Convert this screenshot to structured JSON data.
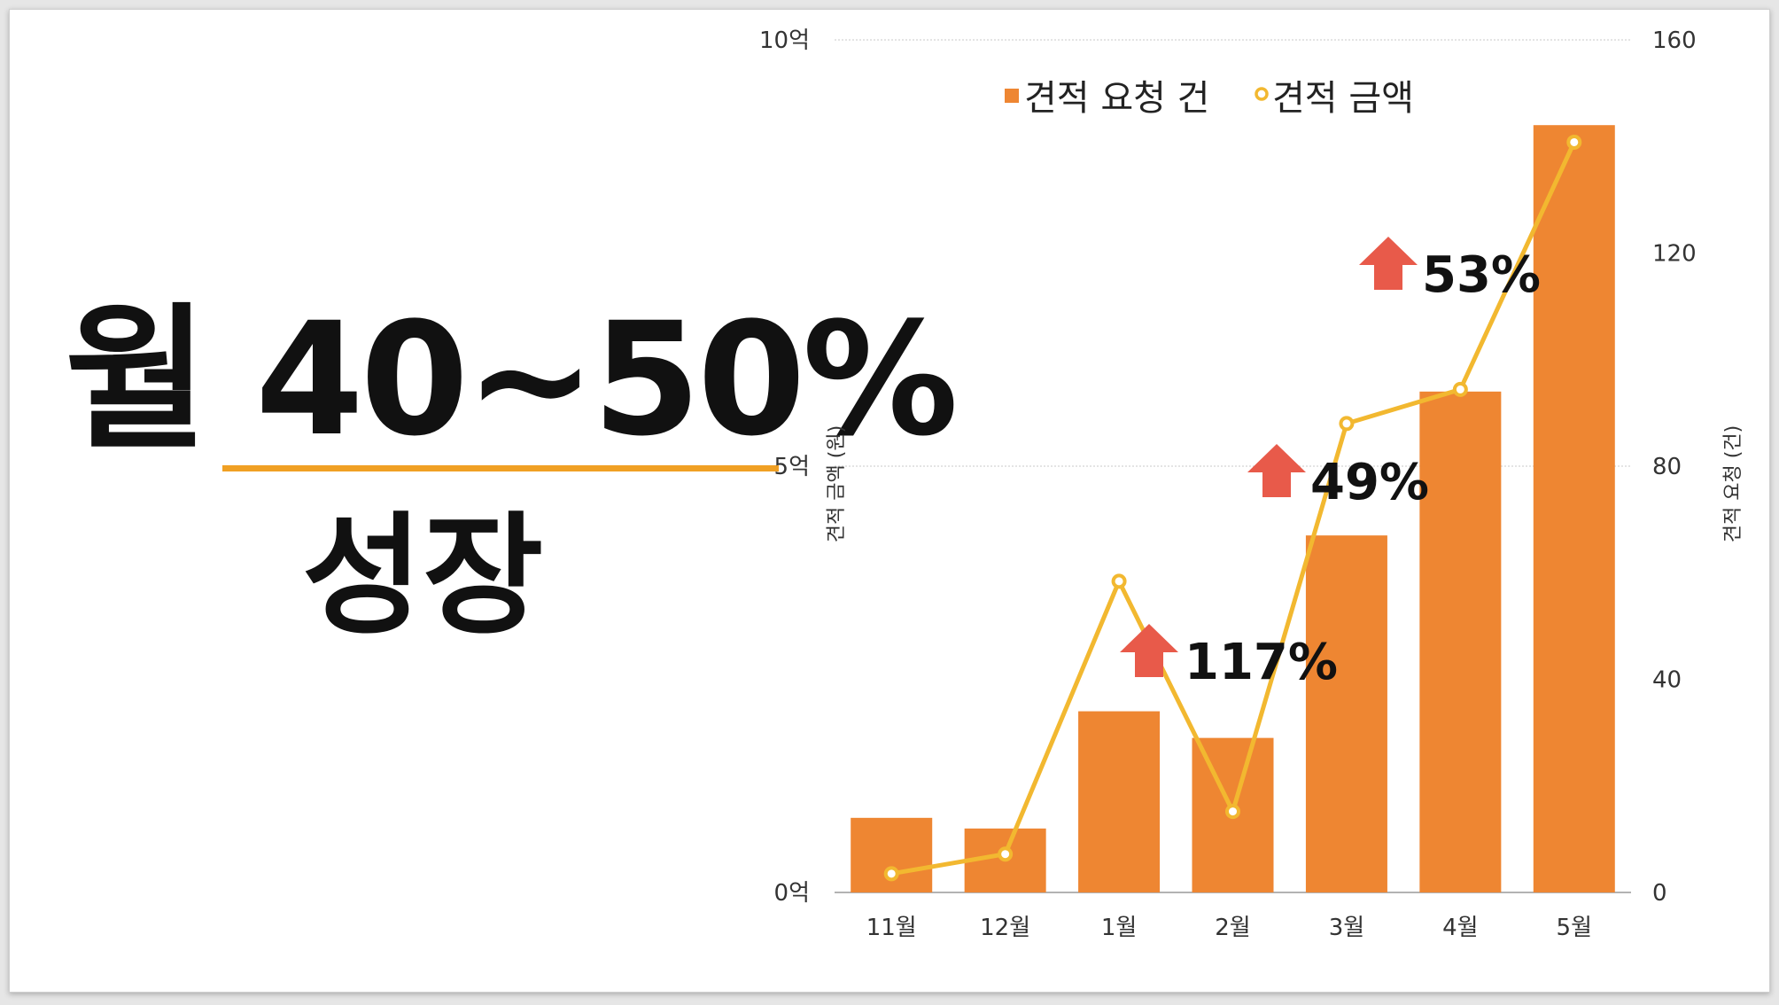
{
  "headline": {
    "main": "월 40~50%",
    "sub": "성장"
  },
  "colors": {
    "bar": "#ee8632",
    "line": "#f2b830",
    "arrow": "#e85a4a",
    "grid": "#c8c8c8",
    "text": "#111111",
    "underline": "#f0a024"
  },
  "chart_data": {
    "type": "bar",
    "categories": [
      "11월",
      "12월",
      "1월",
      "2월",
      "3월",
      "4월",
      "5월"
    ],
    "series": [
      {
        "name": "견적 요청 건",
        "type": "bar",
        "axis": "right",
        "values": [
          14,
          12,
          34,
          29,
          67,
          94,
          144
        ]
      },
      {
        "name": "견적 금액",
        "type": "line",
        "axis": "left",
        "values": [
          0.22,
          0.45,
          3.65,
          0.95,
          5.5,
          5.9,
          8.8
        ]
      }
    ],
    "left_axis": {
      "label": "견적 금액 (원)",
      "range": [
        0,
        10
      ],
      "ticks": [
        0,
        5,
        10
      ],
      "tick_labels": [
        "0억",
        "5억",
        "10억"
      ]
    },
    "right_axis": {
      "label": "견적 요청 (건)",
      "range": [
        0,
        160
      ],
      "ticks": [
        0,
        40,
        80,
        120,
        160
      ],
      "tick_labels": [
        "0",
        "40",
        "80",
        "120",
        "160"
      ]
    },
    "legend": {
      "position": "top",
      "items": [
        "견적 요청 건",
        "견적 금액"
      ]
    },
    "grid": true,
    "annotations": [
      {
        "text": "117%",
        "category": "2월"
      },
      {
        "text": "49%",
        "category": "3월"
      },
      {
        "text": "53%",
        "category": "4월"
      }
    ]
  }
}
